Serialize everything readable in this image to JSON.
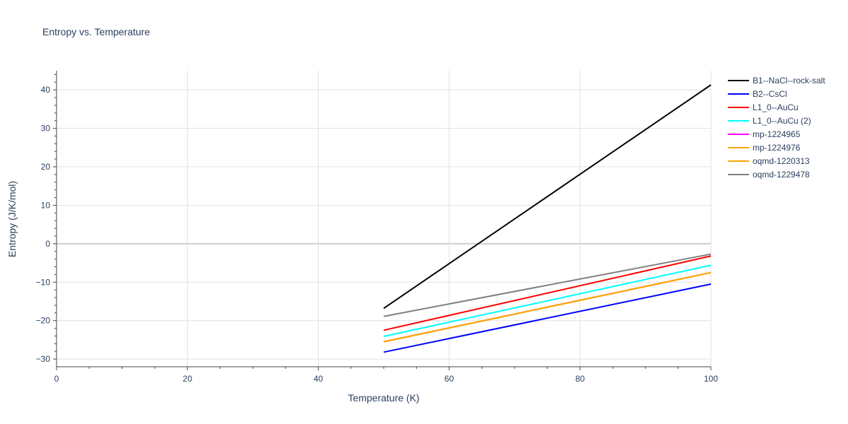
{
  "chart_data": {
    "type": "line",
    "title": "Entropy vs. Temperature",
    "xlabel": "Temperature (K)",
    "ylabel": "Entropy (J/K/mol)",
    "xlim": [
      0,
      100
    ],
    "ylim": [
      -32,
      45
    ],
    "x_ticks": [
      0,
      20,
      40,
      60,
      80,
      100
    ],
    "y_ticks": [
      -30,
      -20,
      -10,
      0,
      10,
      20,
      30,
      40
    ],
    "grid": true,
    "legend_position": "top-right",
    "series": [
      {
        "name": "B1--NaCl--rock-salt",
        "color": "#000000",
        "x": [
          50,
          100
        ],
        "y": [
          -16.8,
          41.3
        ]
      },
      {
        "name": "B2--CsCl",
        "color": "#0000ff",
        "x": [
          50,
          100
        ],
        "y": [
          -28.2,
          -10.5
        ]
      },
      {
        "name": "L1_0--AuCu",
        "color": "#ff0000",
        "x": [
          50,
          100
        ],
        "y": [
          -22.5,
          -3.2
        ]
      },
      {
        "name": "L1_0--AuCu (2)",
        "color": "#00ffff",
        "x": [
          50,
          100
        ],
        "y": [
          -24.1,
          -5.6
        ]
      },
      {
        "name": "mp-1224965",
        "color": "#ff00ff",
        "x": [
          50,
          100
        ],
        "y": [
          -25.5,
          -7.5
        ]
      },
      {
        "name": "mp-1224976",
        "color": "#ffa500",
        "x": [
          50,
          100
        ],
        "y": [
          -25.5,
          -7.5
        ]
      },
      {
        "name": "oqmd-1220313",
        "color": "#ffa500",
        "x": [
          50,
          100
        ],
        "y": [
          -25.5,
          -7.5
        ]
      },
      {
        "name": "oqmd-1229478",
        "color": "#808080",
        "x": [
          50,
          100
        ],
        "y": [
          -18.9,
          -2.7
        ]
      }
    ]
  }
}
